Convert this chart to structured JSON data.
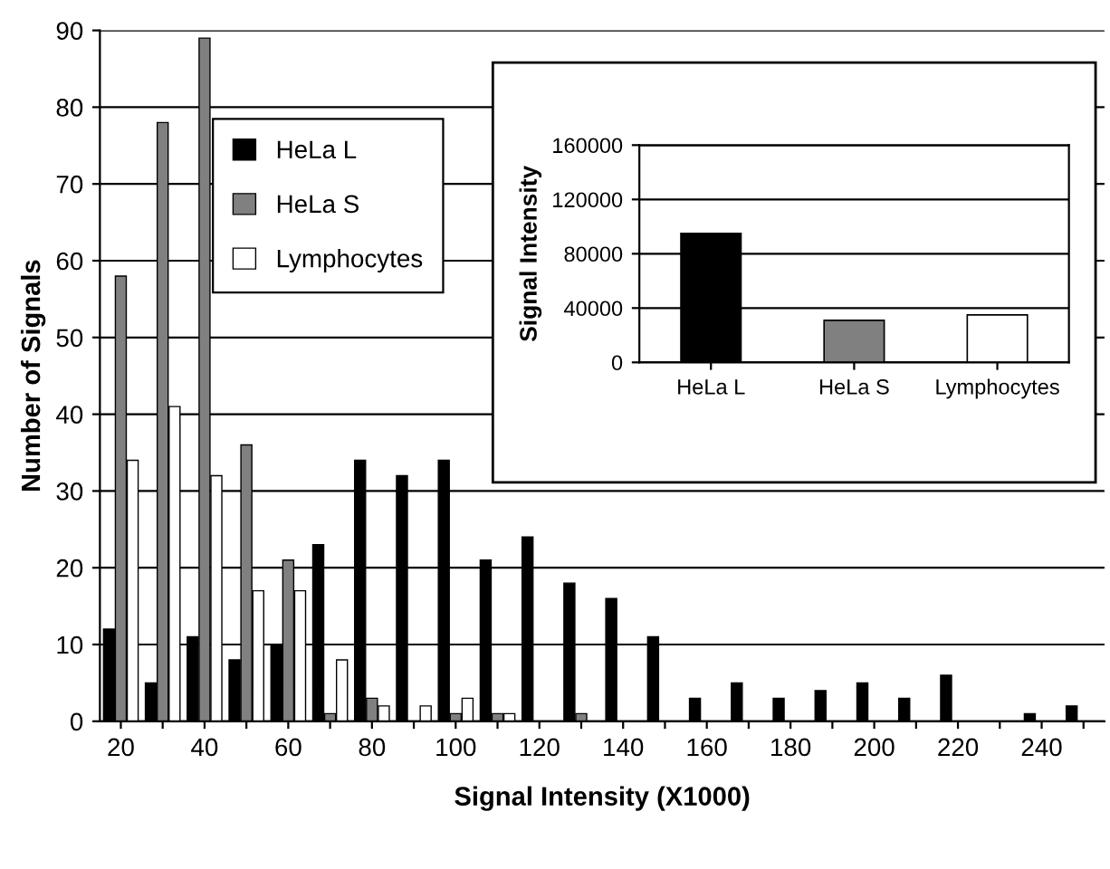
{
  "chart_data": [
    {
      "type": "bar",
      "xlabel": "Signal Intensity (X1000)",
      "ylabel": "Number of Signals",
      "categories": [
        "20",
        null,
        "40",
        null,
        "60",
        null,
        "80",
        null,
        "100",
        null,
        "120",
        null,
        "140",
        null,
        "160",
        null,
        "180",
        null,
        "200",
        null,
        "220",
        null,
        "240",
        null
      ],
      "series": [
        {
          "name": "HeLa L",
          "color": "#000000",
          "values": [
            12,
            5,
            11,
            8,
            10,
            23,
            34,
            32,
            34,
            21,
            24,
            18,
            16,
            11,
            3,
            5,
            3,
            4,
            5,
            3,
            6,
            0,
            1,
            2
          ]
        },
        {
          "name": "HeLa S",
          "color": "#808080",
          "values": [
            58,
            78,
            89,
            36,
            21,
            1,
            3,
            0,
            1,
            1,
            0,
            1,
            0,
            0,
            0,
            0,
            0,
            0,
            0,
            0,
            0,
            0,
            0,
            0
          ]
        },
        {
          "name": "Lymphocytes",
          "color": "#ffffff",
          "values": [
            34,
            41,
            32,
            17,
            17,
            8,
            2,
            2,
            3,
            1,
            0,
            0,
            0,
            0,
            0,
            0,
            0,
            0,
            0,
            0,
            0,
            0,
            0,
            0
          ]
        }
      ],
      "ylim": [
        0,
        90
      ],
      "yticks": [
        0,
        10,
        20,
        30,
        40,
        50,
        60,
        70,
        80,
        90
      ],
      "grid": "y",
      "legend": "top left"
    },
    {
      "type": "bar",
      "ylabel": "Signal Intensity",
      "categories": [
        "HeLa L",
        "HeLa S",
        "Lymphocytes"
      ],
      "values": [
        95000,
        31000,
        35000
      ],
      "colors": [
        "#000000",
        "#808080",
        "#ffffff"
      ],
      "ylim": [
        0,
        160000
      ],
      "yticks": [
        0,
        40000,
        80000,
        120000,
        160000
      ],
      "grid": "y"
    }
  ]
}
